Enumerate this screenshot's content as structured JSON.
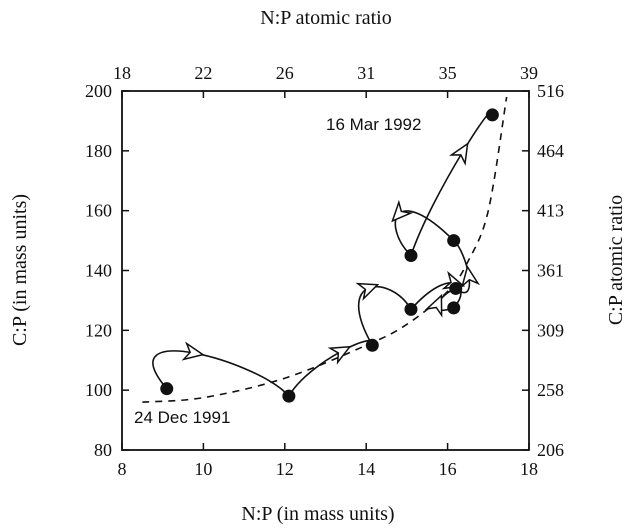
{
  "chart_data": {
    "type": "scatter",
    "title": "",
    "xlabel": "N:P  (in mass units)",
    "ylabel": "C:P  (in mass units)",
    "x2label": "N:P  atomic ratio",
    "y2label": "C:P  atomic ratio",
    "xlim": [
      8,
      18
    ],
    "ylim": [
      80,
      200
    ],
    "xticks": [
      "8",
      "10",
      "12",
      "14",
      "16",
      "18"
    ],
    "yticks": [
      "80",
      "100",
      "120",
      "140",
      "160",
      "180",
      "200"
    ],
    "top_ticks": [
      "18",
      "22",
      "26",
      "31",
      "35",
      "39"
    ],
    "right_ticks": [
      "206",
      "258",
      "309",
      "361",
      "413",
      "464",
      "516"
    ],
    "points": [
      {
        "x": 9.1,
        "y": 100.5
      },
      {
        "x": 12.1,
        "y": 98
      },
      {
        "x": 14.15,
        "y": 115
      },
      {
        "x": 15.1,
        "y": 127
      },
      {
        "x": 16.15,
        "y": 127.5
      },
      {
        "x": 16.2,
        "y": 134
      },
      {
        "x": 16.15,
        "y": 150
      },
      {
        "x": 15.1,
        "y": 145
      },
      {
        "x": 17.1,
        "y": 192
      }
    ],
    "trend_curve": [
      [
        8.5,
        96
      ],
      [
        10,
        97.5
      ],
      [
        12,
        104
      ],
      [
        14,
        115
      ],
      [
        15,
        122
      ],
      [
        16,
        133
      ],
      [
        16.5,
        143
      ],
      [
        17,
        160
      ],
      [
        17.45,
        198
      ]
    ],
    "annotations": [
      "16 Mar 1992",
      "24 Dec 1991"
    ],
    "grid": false,
    "legend": "none"
  }
}
